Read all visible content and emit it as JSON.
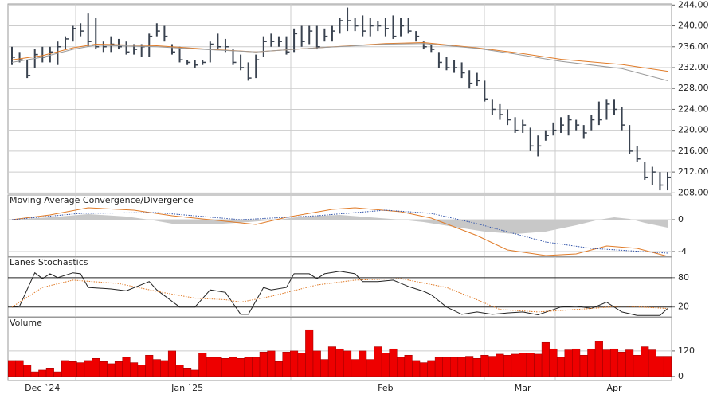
{
  "chart_data": [
    {
      "type": "ohlc",
      "series": [
        {
          "color": "#3a4350",
          "high": [
            236,
            235,
            233.5,
            235.5,
            236,
            236,
            237,
            238,
            240,
            240.5,
            242.5,
            241.5,
            237,
            238,
            237.5,
            237,
            236.5,
            236.5,
            238.5,
            240.5,
            240,
            236.5,
            236,
            233.5,
            233.5,
            233.5,
            237,
            238.5,
            237.5,
            235.5,
            234.5,
            233,
            234.5,
            238,
            238.5,
            238,
            238,
            239.5,
            240,
            240,
            240,
            239.5,
            240,
            241.5,
            243.5,
            241.5,
            242,
            241.5,
            241,
            241.5,
            242,
            241.5,
            241.5,
            239,
            237,
            236.5,
            235,
            234,
            233.5,
            233,
            231.5,
            231,
            229.5,
            226,
            225,
            224,
            222.5,
            222,
            220.5,
            219,
            220,
            221.5,
            222.5,
            223,
            222,
            221,
            223,
            225.5,
            226,
            226,
            224.5,
            221,
            217,
            214,
            213,
            212,
            212
          ],
          "low": [
            232.5,
            233,
            230,
            232,
            233,
            233,
            232.5,
            235.5,
            237,
            238,
            236,
            235.5,
            235,
            235,
            235.5,
            234.5,
            234.5,
            234,
            234,
            238,
            237,
            234.5,
            233,
            232.5,
            232,
            232.5,
            233,
            235.5,
            235,
            232.5,
            231.5,
            229.5,
            230,
            234,
            236,
            236,
            234.5,
            235,
            236,
            236.5,
            235.5,
            237,
            237,
            238.5,
            239,
            239,
            238,
            238,
            239,
            238,
            237.5,
            238,
            238.5,
            237,
            235.5,
            235,
            232,
            231.5,
            231,
            230,
            228,
            228.5,
            225.5,
            223,
            222,
            221,
            219.5,
            219.5,
            216,
            215,
            218,
            219,
            219.5,
            219,
            220,
            218.5,
            220,
            221,
            222,
            223,
            220,
            215.5,
            214,
            210.5,
            209.5,
            208.5,
            208.5
          ],
          "close": [
            234,
            233.5,
            230.5,
            234.5,
            234,
            235,
            236,
            237.5,
            239.5,
            239,
            237,
            236,
            236,
            236.5,
            236,
            235,
            235.5,
            236,
            238,
            239,
            238,
            235,
            233.5,
            233,
            232.5,
            233,
            236.5,
            236,
            236,
            233,
            232,
            230,
            233.5,
            237,
            237,
            237,
            235,
            238.5,
            237,
            239,
            236,
            238,
            239,
            241,
            241,
            240,
            239,
            240,
            240,
            239.5,
            238,
            240,
            239,
            238,
            236,
            235.5,
            233,
            232,
            232,
            231,
            229,
            229.5,
            226,
            224,
            223,
            222,
            220,
            221,
            217,
            217,
            219,
            220,
            221,
            222,
            221,
            219.5,
            222,
            222,
            225,
            224,
            221,
            216,
            214.5,
            211,
            212,
            209.5,
            211
          ]
        }
      ],
      "overlays": [
        {
          "color": "#e07b28",
          "x": [
            0,
            4,
            8,
            11,
            19,
            25,
            32,
            40,
            49,
            54,
            61,
            66,
            72,
            80,
            86
          ],
          "values": [
            233.5,
            234.3,
            235.8,
            236.5,
            236.2,
            235.6,
            235.0,
            235.8,
            236.6,
            236.8,
            235.8,
            234.9,
            233.6,
            232.6,
            231.3
          ]
        },
        {
          "color": "#9a9a9a",
          "x": [
            0,
            4,
            8,
            11,
            19,
            25,
            32,
            40,
            49,
            54,
            61,
            66,
            72,
            80,
            86
          ],
          "values": [
            233.0,
            234.0,
            235.5,
            236.3,
            236.0,
            235.5,
            235.0,
            235.8,
            236.5,
            236.6,
            235.7,
            234.6,
            233.2,
            231.8,
            229.5
          ]
        }
      ],
      "ylim": [
        207.9,
        244.2
      ],
      "yticks": [
        {
          "value": 244,
          "label": "244.00"
        },
        {
          "value": 240,
          "label": "240.00"
        },
        {
          "value": 236,
          "label": "236.00"
        },
        {
          "value": 232,
          "label": "232.00"
        },
        {
          "value": 228,
          "label": "228.00"
        },
        {
          "value": 224,
          "label": "224.00"
        },
        {
          "value": 220,
          "label": "220.00"
        },
        {
          "value": 216,
          "label": "216.00"
        },
        {
          "value": 212,
          "label": "212.00"
        },
        {
          "value": 208,
          "label": "208.00"
        }
      ],
      "grid": true
    },
    {
      "type": "line",
      "title": "Moving Average Convergence/Divergence",
      "series": [
        {
          "color": "#c8c8c8",
          "fill": true,
          "x": [
            0,
            5,
            10,
            15,
            18,
            21,
            26,
            31,
            35,
            38,
            43,
            47,
            51,
            54,
            58,
            62,
            66,
            70,
            74,
            77,
            79,
            81,
            83,
            86
          ],
          "values": [
            0,
            0.3,
            0.7,
            0.4,
            0,
            -0.5,
            -0.6,
            -0.3,
            0,
            0.4,
            0.6,
            0.3,
            0,
            -0.3,
            -0.9,
            -1.5,
            -1.8,
            -1.5,
            -0.7,
            0,
            0.3,
            0.1,
            -0.4,
            -1.0
          ]
        },
        {
          "color": "#e07b28",
          "x": [
            0,
            5,
            10,
            16,
            21,
            26,
            32,
            36,
            42,
            45,
            51,
            55,
            61,
            65,
            70,
            74,
            78,
            82,
            86
          ],
          "values": [
            0,
            0.6,
            1.5,
            1.2,
            0.5,
            0,
            -0.6,
            0.3,
            1.3,
            1.5,
            1.0,
            0.2,
            -2.0,
            -3.8,
            -4.5,
            -4.3,
            -3.3,
            -3.6,
            -4.6
          ]
        },
        {
          "color": "#3355aa",
          "dash": true,
          "x": [
            0,
            9,
            19,
            30,
            40,
            49,
            55,
            61,
            70,
            76,
            86
          ],
          "values": [
            0,
            0.8,
            0.9,
            0,
            0.5,
            1.2,
            0.8,
            -0.5,
            -2.8,
            -3.6,
            -4.2
          ]
        }
      ],
      "ylim": [
        -4.6,
        3.1
      ],
      "yticks": [
        0,
        -4
      ]
    },
    {
      "type": "line",
      "title": "Lanes Stochastics",
      "series": [
        {
          "color": "#222222",
          "x": [
            0,
            1,
            3,
            4,
            5,
            6,
            8,
            9,
            10,
            13,
            15,
            18,
            19,
            22,
            24,
            26,
            28,
            30,
            31,
            33,
            34,
            36,
            37,
            39,
            40,
            41,
            43,
            45,
            46,
            48,
            50,
            52,
            54,
            55,
            57,
            59,
            61,
            63,
            65,
            67,
            69,
            72,
            74,
            76,
            78,
            80,
            82,
            85,
            86
          ],
          "values": [
            20,
            22,
            90,
            78,
            88,
            80,
            90,
            88,
            60,
            57,
            53,
            72,
            55,
            20,
            20,
            55,
            50,
            5,
            5,
            60,
            55,
            60,
            88,
            88,
            78,
            88,
            93,
            88,
            72,
            72,
            75,
            62,
            52,
            45,
            20,
            5,
            10,
            5,
            8,
            10,
            4,
            20,
            22,
            17,
            30,
            10,
            3,
            3,
            17
          ]
        },
        {
          "color": "#e07b28",
          "dash": true,
          "x": [
            0,
            4,
            8,
            14,
            19,
            24,
            28,
            30,
            34,
            40,
            45,
            51,
            57,
            61,
            64,
            69,
            76,
            80,
            86
          ],
          "values": [
            20,
            60,
            75,
            68,
            52,
            38,
            35,
            30,
            42,
            65,
            75,
            78,
            60,
            35,
            15,
            10,
            17,
            22,
            17
          ]
        }
      ],
      "ylim": [
        0,
        122
      ],
      "yticks": [
        80,
        20
      ],
      "gridcolor": "#222222"
    },
    {
      "type": "bar",
      "title": "Volume",
      "categories": [
        null,
        null,
        null,
        null,
        "Dec `24",
        null,
        null,
        null,
        null,
        null,
        null,
        null,
        null,
        null,
        null,
        null,
        null,
        null,
        null,
        null,
        null,
        null,
        null,
        "Jan `25",
        null,
        null,
        null,
        null,
        null,
        null,
        null,
        null,
        null,
        null,
        null,
        null,
        null,
        null,
        null,
        null,
        null,
        null,
        null,
        null,
        null,
        null,
        null,
        null,
        null,
        "Feb",
        null,
        null,
        null,
        null,
        null,
        null,
        null,
        null,
        null,
        null,
        null,
        null,
        null,
        null,
        null,
        null,
        null,
        "Mar",
        null,
        null,
        null,
        null,
        null,
        null,
        null,
        null,
        null,
        null,
        null,
        "Apr",
        null,
        null,
        null,
        null,
        null,
        null,
        null
      ],
      "values": [
        75,
        75,
        55,
        22,
        30,
        40,
        22,
        75,
        70,
        65,
        75,
        85,
        70,
        60,
        70,
        90,
        65,
        55,
        100,
        80,
        75,
        120,
        55,
        40,
        30,
        110,
        90,
        90,
        85,
        90,
        85,
        90,
        90,
        115,
        120,
        70,
        115,
        120,
        110,
        220,
        120,
        80,
        140,
        130,
        120,
        80,
        120,
        80,
        140,
        110,
        130,
        90,
        100,
        75,
        65,
        75,
        90,
        90,
        90,
        90,
        95,
        85,
        100,
        95,
        105,
        100,
        105,
        110,
        110,
        105,
        160,
        130,
        90,
        125,
        130,
        100,
        130,
        165,
        125,
        130,
        115,
        125,
        100,
        140,
        125,
        95,
        95
      ],
      "color": "#ee0000",
      "ylim": [
        -19,
        277
      ],
      "yticks": [
        120,
        0
      ]
    }
  ]
}
